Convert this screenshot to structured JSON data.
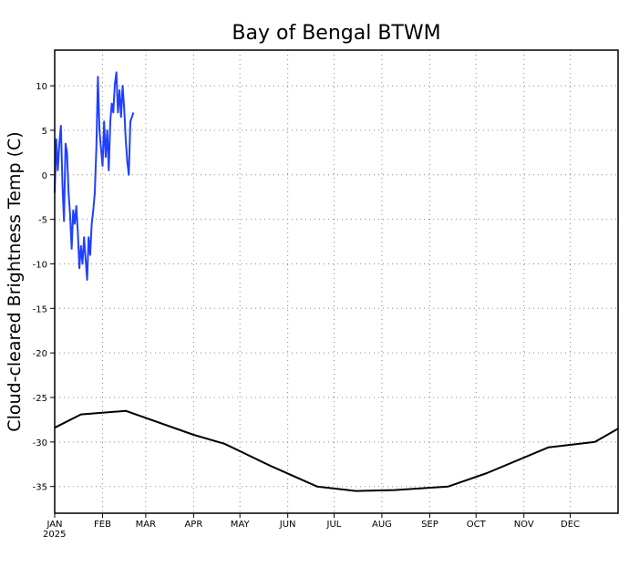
{
  "chart_data": {
    "type": "line",
    "title": "Bay of Bengal BTWM",
    "xlabel": "",
    "ylabel": "Cloud-cleared Brightness Temp (C)",
    "year_label": "2025",
    "x_unit": "day of year",
    "xlim": [
      1,
      366
    ],
    "ylim": [
      -38,
      14
    ],
    "yticks": [
      -35,
      -30,
      -25,
      -20,
      -15,
      -10,
      -5,
      0,
      5,
      10
    ],
    "grid": true,
    "legend": "none",
    "x_tick_labels": [
      {
        "day": 1,
        "label": "JAN"
      },
      {
        "day": 32,
        "label": "FEB"
      },
      {
        "day": 60,
        "label": "MAR"
      },
      {
        "day": 91,
        "label": "APR"
      },
      {
        "day": 121,
        "label": "MAY"
      },
      {
        "day": 152,
        "label": "JUN"
      },
      {
        "day": 182,
        "label": "JUL"
      },
      {
        "day": 213,
        "label": "AUG"
      },
      {
        "day": 244,
        "label": "SEP"
      },
      {
        "day": 274,
        "label": "OCT"
      },
      {
        "day": 305,
        "label": "NOV"
      },
      {
        "day": 335,
        "label": "DEC"
      }
    ],
    "series": [
      {
        "color": "#2040ff",
        "x": [
          1,
          2,
          3,
          4,
          5,
          6,
          7,
          7.5,
          8,
          9,
          10,
          11,
          12,
          13,
          14,
          15,
          16,
          17,
          18,
          19,
          20,
          21,
          22,
          23,
          24,
          25,
          26,
          27,
          28,
          29,
          30,
          31,
          32,
          33,
          34,
          35,
          36,
          37,
          38,
          39,
          40,
          41,
          42,
          43,
          44,
          45,
          46,
          47,
          48,
          49,
          50,
          51,
          52
        ],
        "y": [
          -2,
          4,
          0.5,
          3.5,
          5.5,
          -1,
          -5.2,
          -1,
          3.5,
          2.5,
          -2,
          -4.5,
          -8.3,
          -4,
          -5.5,
          -3.5,
          -6.5,
          -10.5,
          -8,
          -10,
          -7,
          -9.5,
          -11.8,
          -7,
          -9,
          -5.5,
          -4,
          -2,
          3,
          11,
          5,
          3,
          1,
          6,
          2,
          5,
          0.5,
          6,
          8,
          7,
          10.2,
          11.5,
          7,
          9.5,
          6.5,
          10,
          7.5,
          4,
          1.5,
          0,
          6,
          6.5,
          7
        ]
      },
      {
        "color": "#000000",
        "x": [
          1,
          18,
          47,
          91,
          111,
          141,
          171,
          196,
          221,
          256,
          281,
          321,
          351,
          366
        ],
        "y": [
          -28.4,
          -26.9,
          -26.5,
          -29.2,
          -30.2,
          -32.7,
          -35.0,
          -35.5,
          -35.4,
          -35.0,
          -33.5,
          -30.6,
          -30.0,
          -28.5
        ]
      }
    ]
  }
}
